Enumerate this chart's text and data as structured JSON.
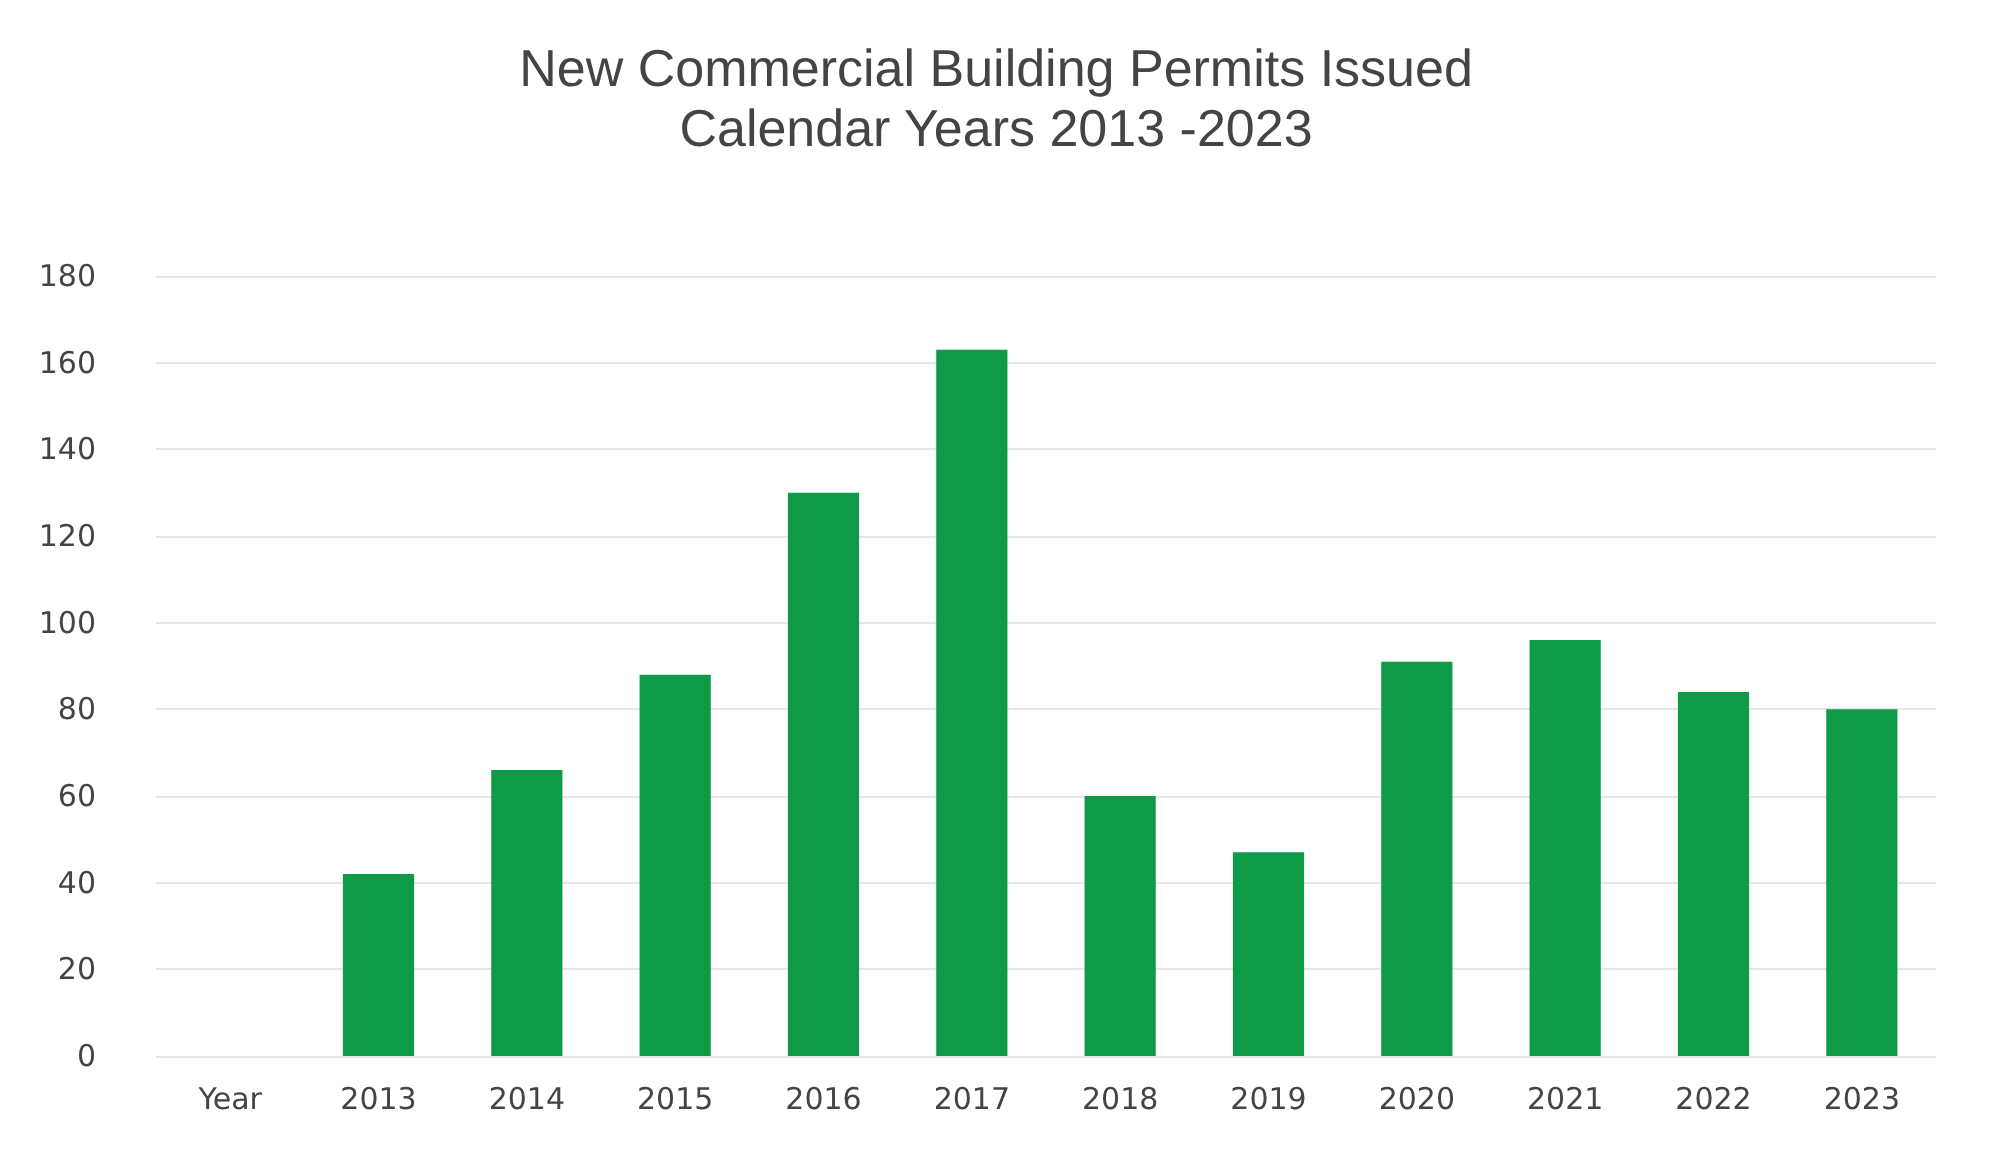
{
  "chart_data": {
    "type": "bar",
    "title": "New Commercial Building Permits Issued",
    "subtitle": "Calendar Years 2013 -2023",
    "categories": [
      "Year",
      "2013",
      "2014",
      "2015",
      "2016",
      "2017",
      "2018",
      "2019",
      "2020",
      "2021",
      "2022",
      "2023"
    ],
    "values": [
      null,
      42,
      66,
      88,
      130,
      163,
      60,
      47,
      91,
      96,
      84,
      80
    ],
    "color": "#0f9a48",
    "ylim": [
      0,
      180
    ],
    "yticks": [
      0,
      20,
      40,
      60,
      80,
      100,
      120,
      140,
      160,
      180
    ],
    "grid": true
  }
}
